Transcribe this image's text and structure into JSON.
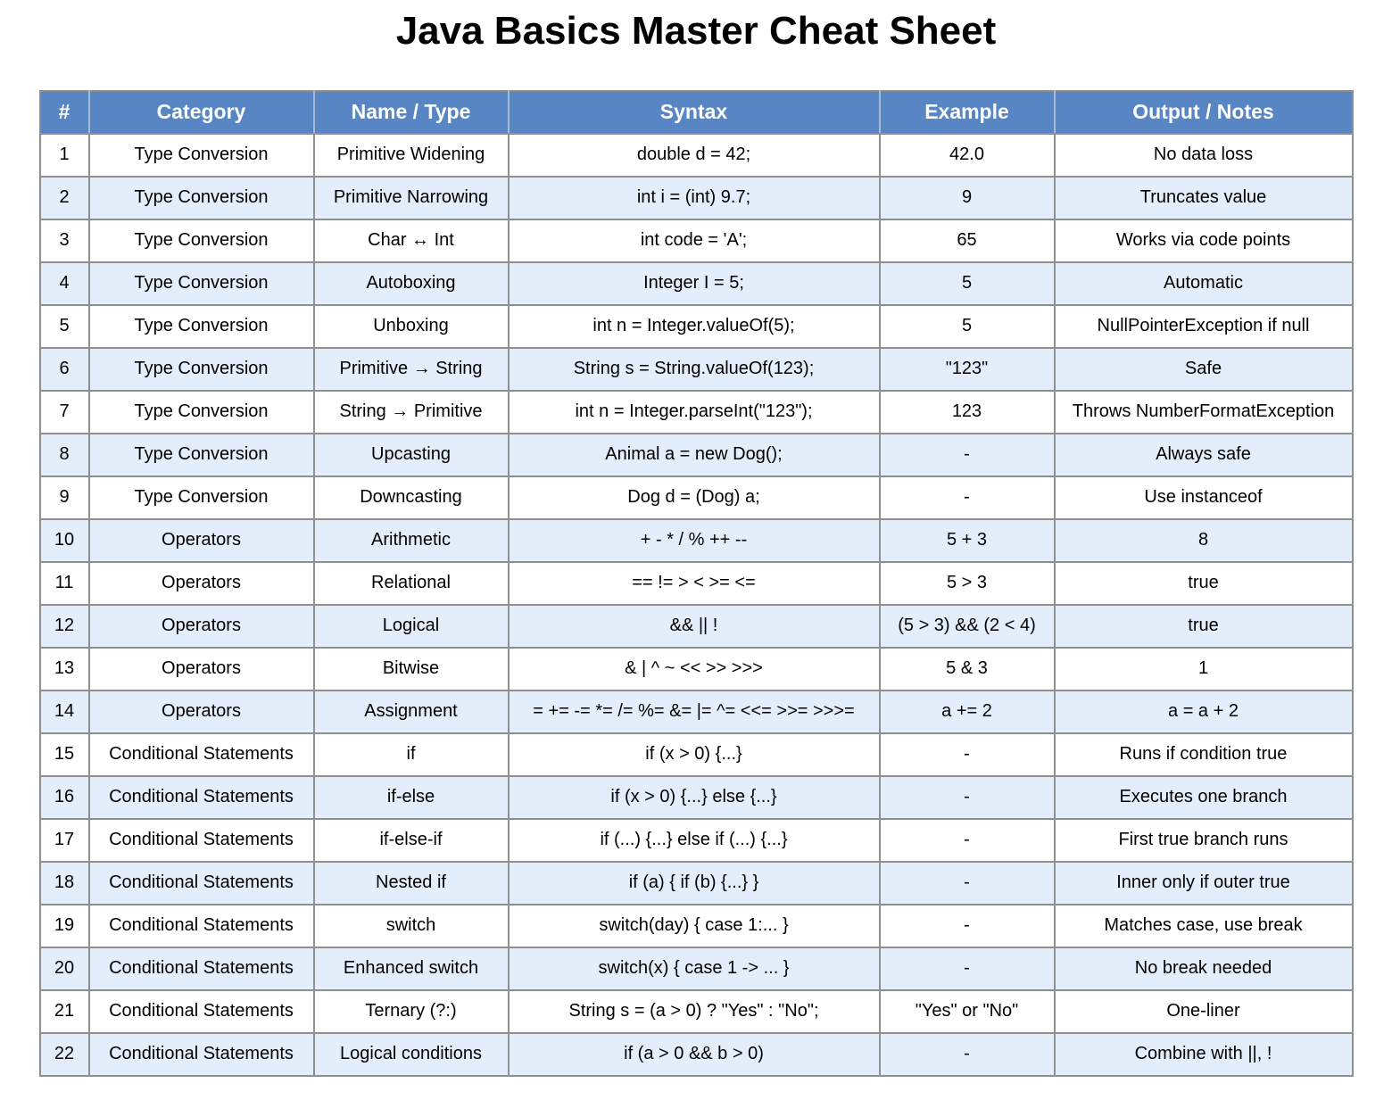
{
  "title": "Java Basics Master Cheat Sheet",
  "colors": {
    "header_bg": "#5886c4",
    "header_text": "#ffffff",
    "alt_row_bg": "#e4eefb",
    "border": "#8f8f8f"
  },
  "table": {
    "headers": [
      "#",
      "Category",
      "Name / Type",
      "Syntax",
      "Example",
      "Output / Notes"
    ],
    "rows": [
      [
        "1",
        "Type Conversion",
        "Primitive Widening",
        "double d = 42;",
        "42.0",
        "No data loss"
      ],
      [
        "2",
        "Type Conversion",
        "Primitive Narrowing",
        "int i = (int) 9.7;",
        "9",
        "Truncates value"
      ],
      [
        "3",
        "Type Conversion",
        "Char ↔ Int",
        "int code = 'A';",
        "65",
        "Works via code points"
      ],
      [
        "4",
        "Type Conversion",
        "Autoboxing",
        "Integer I = 5;",
        "5",
        "Automatic"
      ],
      [
        "5",
        "Type Conversion",
        "Unboxing",
        "int n = Integer.valueOf(5);",
        "5",
        "NullPointerException if null"
      ],
      [
        "6",
        "Type Conversion",
        "Primitive → String",
        "String s = String.valueOf(123);",
        "\"123\"",
        "Safe"
      ],
      [
        "7",
        "Type Conversion",
        "String → Primitive",
        "int n = Integer.parseInt(\"123\");",
        "123",
        "Throws NumberFormatException"
      ],
      [
        "8",
        "Type Conversion",
        "Upcasting",
        "Animal a = new Dog();",
        "-",
        "Always safe"
      ],
      [
        "9",
        "Type Conversion",
        "Downcasting",
        "Dog d = (Dog) a;",
        "-",
        "Use instanceof"
      ],
      [
        "10",
        "Operators",
        "Arithmetic",
        "+ - * / % ++ --",
        "5 + 3",
        "8"
      ],
      [
        "11",
        "Operators",
        "Relational",
        "== != > < >= <=",
        "5 > 3",
        "true"
      ],
      [
        "12",
        "Operators",
        "Logical",
        "&& || !",
        "(5 > 3) && (2 < 4)",
        "true"
      ],
      [
        "13",
        "Operators",
        "Bitwise",
        "& | ^ ~ << >> >>>",
        "5 & 3",
        "1"
      ],
      [
        "14",
        "Operators",
        "Assignment",
        "= += -= *= /= %= &= |= ^= <<= >>= >>>=",
        "a += 2",
        "a = a + 2"
      ],
      [
        "15",
        "Conditional Statements",
        "if",
        "if (x > 0) {...}",
        "-",
        "Runs if condition true"
      ],
      [
        "16",
        "Conditional Statements",
        "if-else",
        "if (x > 0) {...} else {...}",
        "-",
        "Executes one branch"
      ],
      [
        "17",
        "Conditional Statements",
        "if-else-if",
        "if (...) {...} else if (...) {...}",
        "-",
        "First true branch runs"
      ],
      [
        "18",
        "Conditional Statements",
        "Nested if",
        "if (a) { if (b) {...} }",
        "-",
        "Inner only if outer true"
      ],
      [
        "19",
        "Conditional Statements",
        "switch",
        "switch(day) { case 1:... }",
        "-",
        "Matches case, use break"
      ],
      [
        "20",
        "Conditional Statements",
        "Enhanced switch",
        "switch(x) { case 1 -> ... }",
        "-",
        "No break needed"
      ],
      [
        "21",
        "Conditional Statements",
        "Ternary (?:)",
        "String s = (a > 0) ? \"Yes\" : \"No\";",
        "\"Yes\" or \"No\"",
        "One-liner"
      ],
      [
        "22",
        "Conditional Statements",
        "Logical conditions",
        "if (a > 0 && b > 0)",
        "-",
        "Combine with ||, !"
      ]
    ]
  }
}
